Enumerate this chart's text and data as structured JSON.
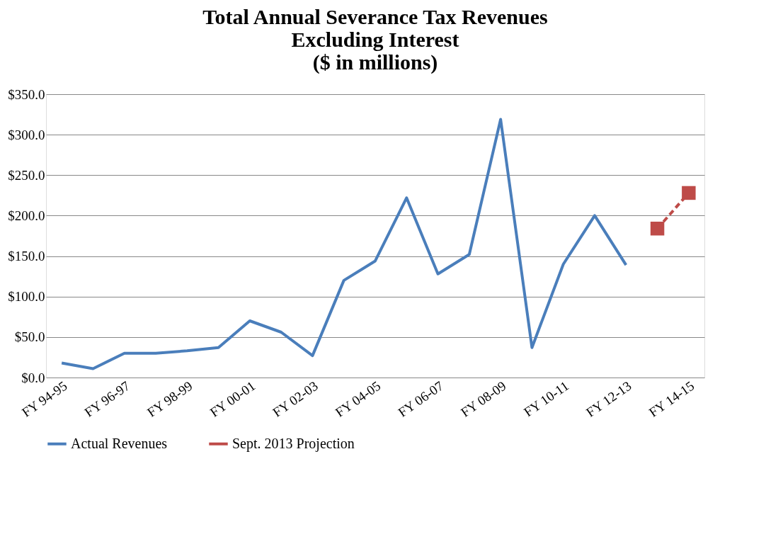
{
  "chart_data": {
    "type": "line",
    "title": [
      "Total Annual Severance Tax Revenues",
      "Excluding Interest",
      "($ in millions)"
    ],
    "categories": [
      "FY 94-95",
      null,
      "FY 96-97",
      null,
      "FY 98-99",
      null,
      "FY 00-01",
      null,
      "FY 02-03",
      null,
      "FY 04-05",
      null,
      "FY 06-07",
      null,
      "FY 08-09",
      null,
      "FY 10-11",
      null,
      "FY 12-13",
      null,
      "FY 14-15"
    ],
    "series": [
      {
        "name": "Actual Revenues",
        "color": "#4a7ebb",
        "line_style": "solid",
        "values": [
          18,
          11,
          30,
          30,
          33,
          37,
          70,
          56,
          27,
          120,
          144,
          222,
          128,
          152,
          319,
          37,
          140,
          200,
          139,
          null,
          null
        ]
      },
      {
        "name": "Sept. 2013 Projection",
        "color": "#be4b48",
        "marker": "square",
        "line_style": "dashed",
        "values": [
          null,
          null,
          null,
          null,
          null,
          null,
          null,
          null,
          null,
          null,
          null,
          null,
          null,
          null,
          null,
          null,
          null,
          null,
          null,
          184,
          228
        ]
      }
    ],
    "ylim": [
      0,
      350
    ],
    "yticks": [
      {
        "value": 0,
        "label": "$0.0"
      },
      {
        "value": 50,
        "label": "$50.0"
      },
      {
        "value": 100,
        "label": "$100.0"
      },
      {
        "value": 150,
        "label": "$150.0"
      },
      {
        "value": 200,
        "label": "$200.0"
      },
      {
        "value": 250,
        "label": "$250.0"
      },
      {
        "value": 300,
        "label": "$300.0"
      },
      {
        "value": 350,
        "label": "$350.0"
      }
    ],
    "grid": "y",
    "legend": "bottom"
  }
}
